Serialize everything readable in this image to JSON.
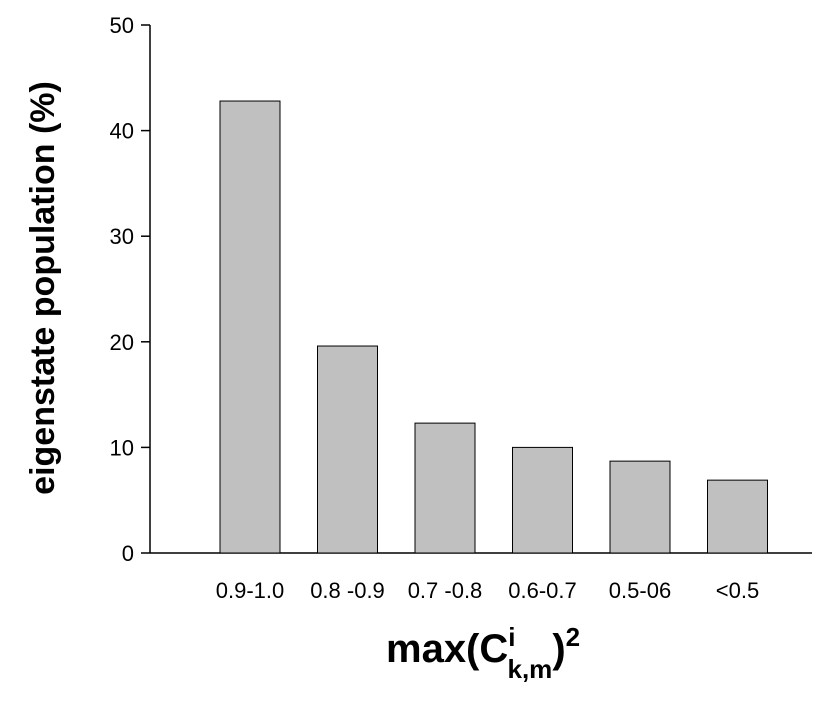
{
  "chart_data": {
    "type": "bar",
    "categories": [
      "0.9-1.0",
      "0.8 -0.9",
      "0.7 -0.8",
      "0.6-0.7",
      "0.5-06",
      "<0.5"
    ],
    "values": [
      42.8,
      19.6,
      12.3,
      10.0,
      8.7,
      6.9
    ],
    "ylabel": "eigenstate population (%)",
    "xlabel": {
      "base": "max(C",
      "superscript": "i",
      "subscript": "k,m",
      "close": ")",
      "power": "2"
    },
    "ylim": [
      0,
      50
    ],
    "yticks": [
      0,
      10,
      20,
      30,
      40,
      50
    ],
    "grid": false,
    "bar_color": "#c0c0c0",
    "edge_color": "#000000"
  }
}
